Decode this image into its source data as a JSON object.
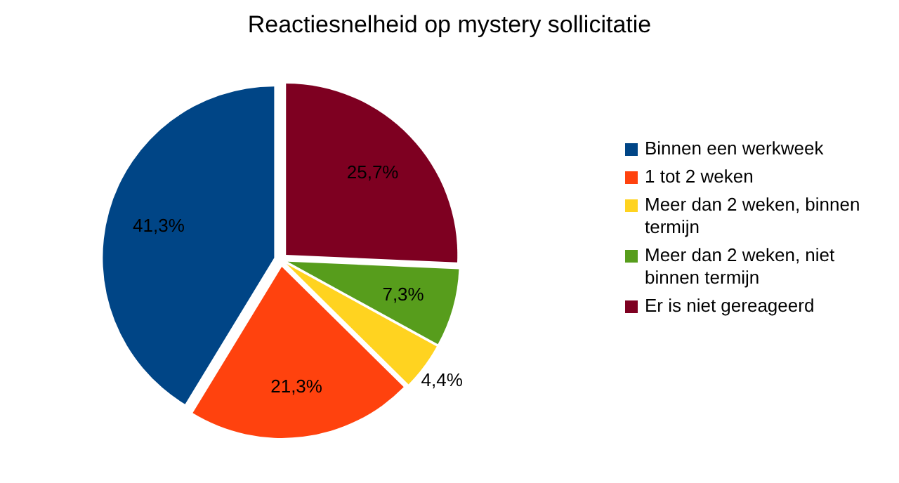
{
  "chart_data": {
    "type": "pie",
    "title": "Reactiesnelheid op mystery sollicitatie",
    "categories": [
      "Binnen een werkweek",
      "1 tot 2 weken",
      "Meer dan 2 weken, binnen termijn",
      "Meer dan 2 weken, niet binnen termijn",
      "Er is niet gereageerd"
    ],
    "values": [
      41.3,
      21.3,
      4.4,
      7.3,
      25.7
    ],
    "colors": [
      "#004586",
      "#ff420e",
      "#ffd320",
      "#579d1c",
      "#7e0021"
    ],
    "value_labels": [
      "41,3%",
      "21,3%",
      "4,4%",
      "7,3%",
      "25,7%"
    ],
    "legend": "right"
  }
}
